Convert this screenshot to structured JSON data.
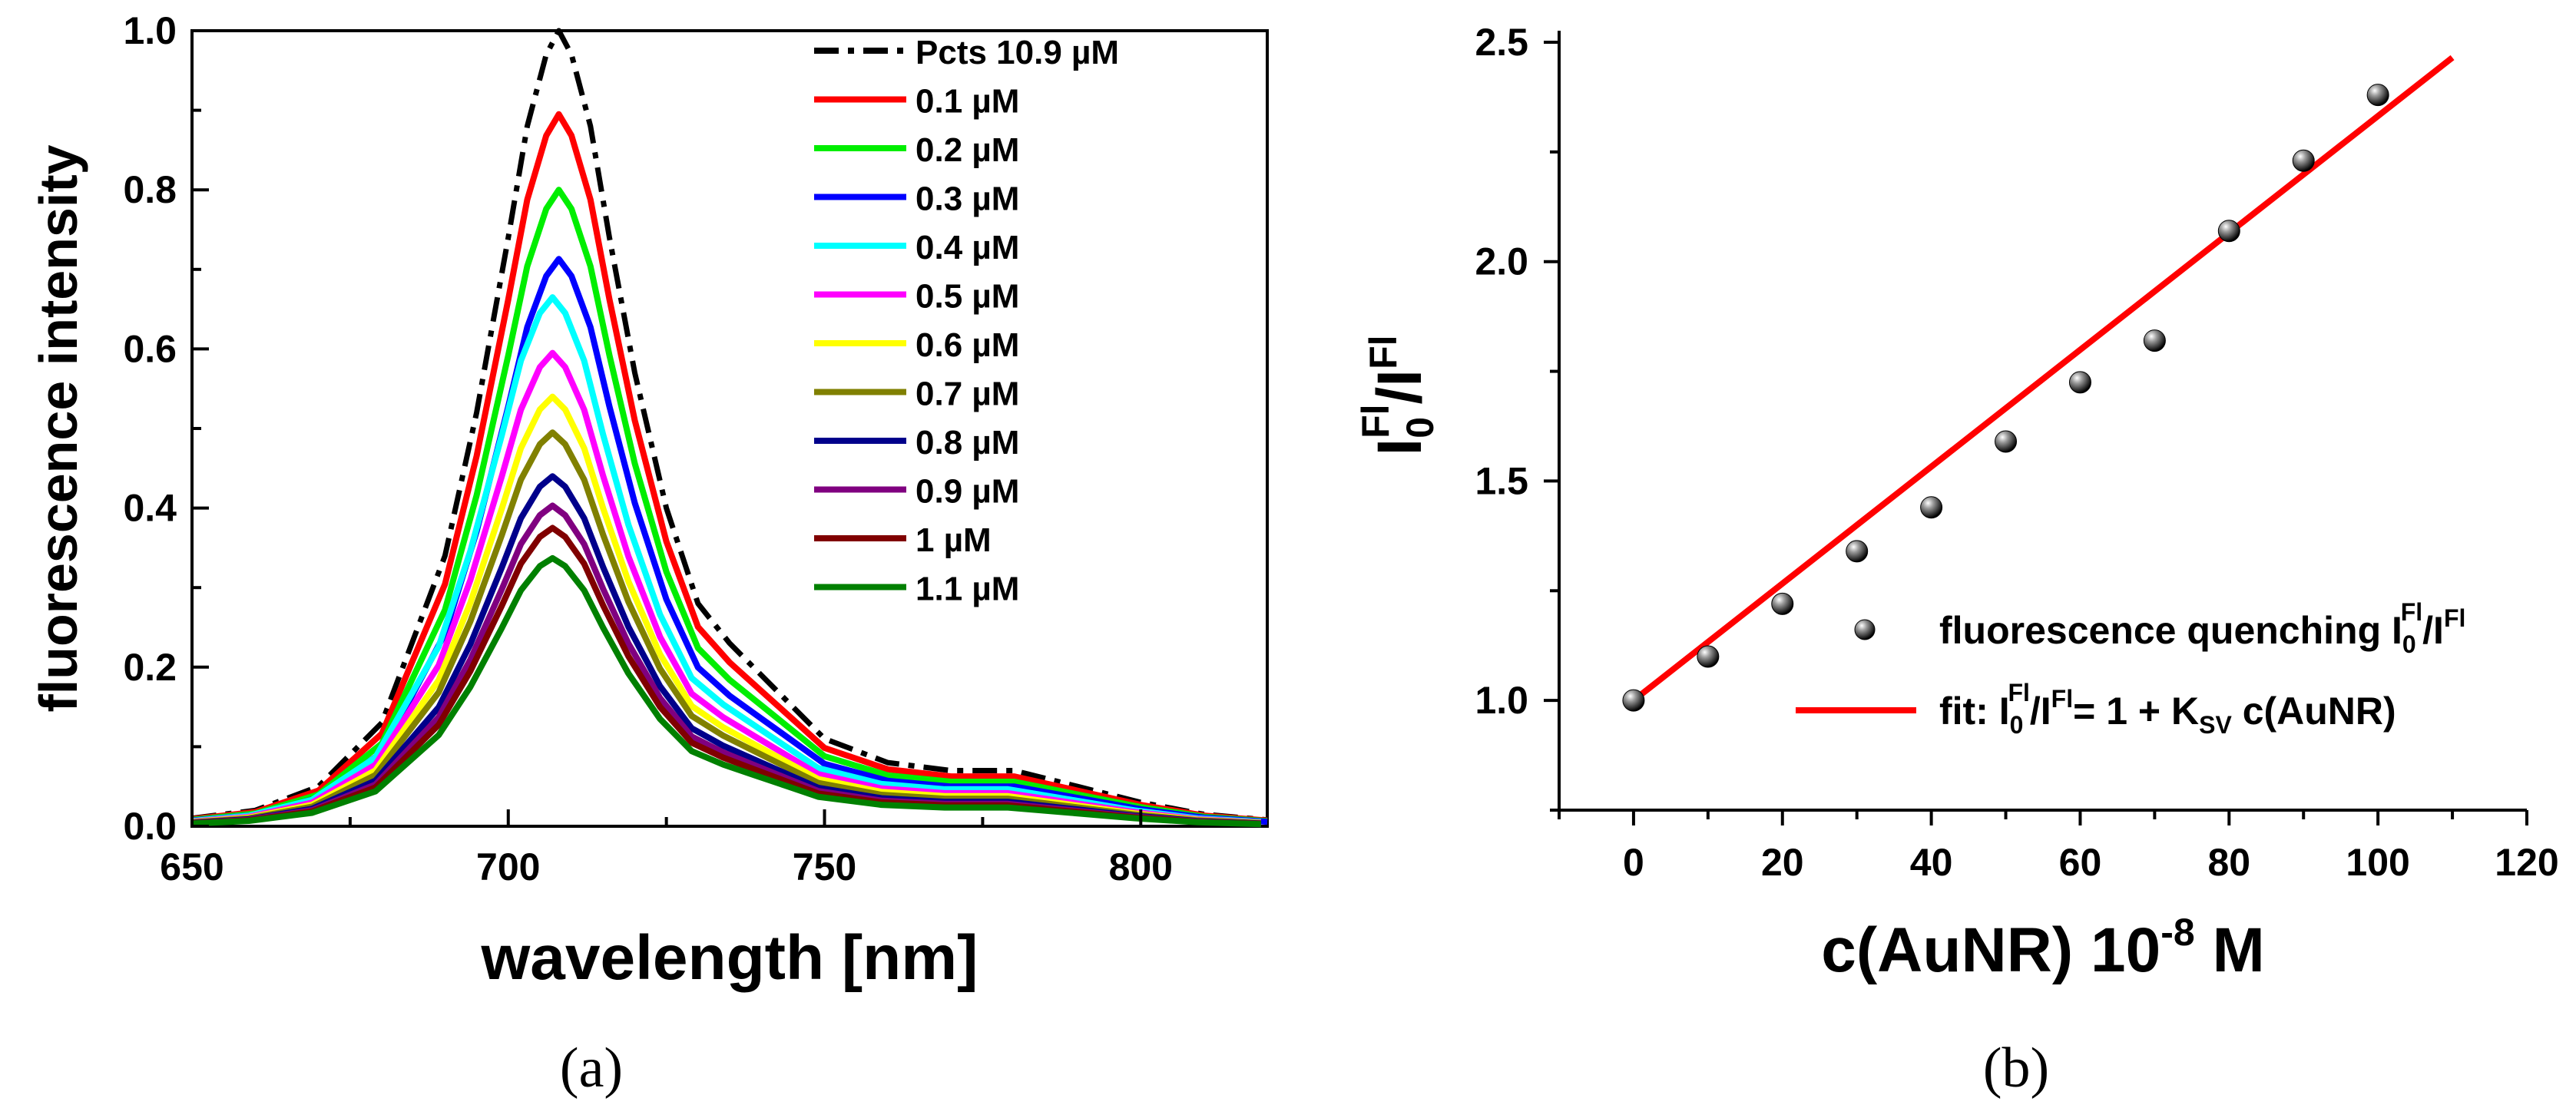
{
  "chart_data": [
    {
      "panel": "a",
      "type": "line",
      "panel_label": "(a)",
      "xlabel": "wavelength [nm]",
      "ylabel": "fluorescence intensity",
      "xlim": [
        650,
        820
      ],
      "ylim": [
        0,
        1.0
      ],
      "xticks": [
        650,
        700,
        750,
        800
      ],
      "yticks": [
        0.0,
        0.2,
        0.4,
        0.6,
        0.8,
        1.0
      ],
      "tick_labels_x": [
        "650",
        "700",
        "750",
        "800"
      ],
      "tick_labels_y": [
        "0.0",
        "0.2",
        "0.4",
        "0.6",
        "0.8",
        "1.0"
      ],
      "shape": {
        "x": [
          650,
          660,
          670,
          680,
          690,
          695,
          700,
          703,
          706,
          708,
          710,
          713,
          716,
          720,
          725,
          730,
          735,
          740,
          745,
          750,
          760,
          770,
          780,
          790,
          800,
          810,
          820
        ],
        "y": [
          0.01,
          0.02,
          0.05,
          0.13,
          0.34,
          0.52,
          0.74,
          0.88,
          0.97,
          1.0,
          0.97,
          0.88,
          0.74,
          0.57,
          0.4,
          0.28,
          0.23,
          0.19,
          0.15,
          0.11,
          0.08,
          0.07,
          0.07,
          0.05,
          0.03,
          0.015,
          0.008
        ]
      },
      "series": [
        {
          "name": "Pcts 10.9 µM",
          "color": "#000000",
          "dash": "dashdot",
          "peak": 1.0,
          "peak_x": 708
        },
        {
          "name": "0.1 µM",
          "color": "#ff0000",
          "dash": "solid",
          "peak": 0.895,
          "peak_x": 708
        },
        {
          "name": "0.2 µM",
          "color": "#00ee00",
          "dash": "solid",
          "peak": 0.8,
          "peak_x": 708
        },
        {
          "name": "0.3 µM",
          "color": "#0000ff",
          "dash": "solid",
          "peak": 0.713,
          "peak_x": 708
        },
        {
          "name": "0.4 µM",
          "color": "#00ffff",
          "dash": "solid",
          "peak": 0.665,
          "peak_x": 707
        },
        {
          "name": "0.5 µM",
          "color": "#ff00ff",
          "dash": "solid",
          "peak": 0.595,
          "peak_x": 707
        },
        {
          "name": "0.6 µM",
          "color": "#ffff00",
          "dash": "solid",
          "peak": 0.54,
          "peak_x": 707
        },
        {
          "name": "0.7 µM",
          "color": "#808000",
          "dash": "solid",
          "peak": 0.495,
          "peak_x": 707
        },
        {
          "name": "0.8 µM",
          "color": "#00008b",
          "dash": "solid",
          "peak": 0.44,
          "peak_x": 707
        },
        {
          "name": "0.9 µM",
          "color": "#800080",
          "dash": "solid",
          "peak": 0.403,
          "peak_x": 707
        },
        {
          "name": "1 µM",
          "color": "#800000",
          "dash": "solid",
          "peak": 0.375,
          "peak_x": 707
        },
        {
          "name": "1.1 µM",
          "color": "#008000",
          "dash": "solid",
          "peak": 0.337,
          "peak_x": 707
        }
      ],
      "legend_position": "top-right"
    },
    {
      "panel": "b",
      "type": "scatter",
      "panel_label": "(b)",
      "xlabel": "c(AuNR) 10",
      "xlabel_sup": "-8",
      "xlabel_end": " M",
      "ylabel_main": "I",
      "ylabel_sup": "Fl",
      "ylabel_sub": "0",
      "ylabel_mid": "/I",
      "xlim": [
        -10,
        120
      ],
      "ylim": [
        0.75,
        2.5
      ],
      "xticks": [
        0,
        20,
        40,
        60,
        80,
        100,
        120
      ],
      "yticks": [
        1.0,
        1.5,
        2.0,
        2.5
      ],
      "tick_labels_x": [
        "0",
        "20",
        "40",
        "60",
        "80",
        "100",
        "120"
      ],
      "tick_labels_y": [
        "1.0",
        "1.5",
        "2.0",
        "2.5"
      ],
      "points": {
        "x": [
          0,
          10,
          20,
          30,
          40,
          50,
          60,
          70,
          80,
          90,
          100
        ],
        "y": [
          1.0,
          1.1,
          1.22,
          1.34,
          1.44,
          1.59,
          1.725,
          1.82,
          2.07,
          2.23,
          2.38
        ]
      },
      "fit": {
        "x": [
          0,
          110
        ],
        "y": [
          1.0,
          2.465
        ],
        "color": "#ff0000"
      },
      "legend": {
        "points_label": "fluorescence quenching I",
        "points_sub": "0",
        "points_sup": "Fl",
        "points_tail": "/I",
        "points_tail_sup": "Fl",
        "fit_label": "fit: I",
        "fit_sub": "0",
        "fit_sup": "Fl",
        "fit_mid": "/I",
        "fit_mid_sup": "Fl",
        "fit_eq": "= 1 + K",
        "fit_ksub": "SV",
        "fit_tail": " c(AuNR)"
      },
      "legend_position": "bottom-right"
    }
  ]
}
